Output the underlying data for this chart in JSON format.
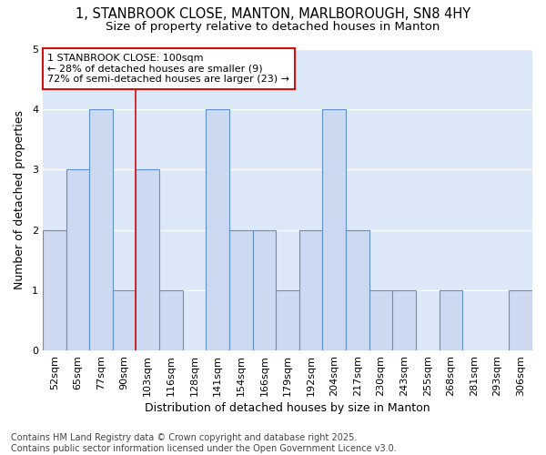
{
  "title_line1": "1, STANBROOK CLOSE, MANTON, MARLBOROUGH, SN8 4HY",
  "title_line2": "Size of property relative to detached houses in Manton",
  "xlabel": "Distribution of detached houses by size in Manton",
  "ylabel": "Number of detached properties",
  "categories": [
    "52sqm",
    "65sqm",
    "77sqm",
    "90sqm",
    "103sqm",
    "116sqm",
    "128sqm",
    "141sqm",
    "154sqm",
    "166sqm",
    "179sqm",
    "192sqm",
    "204sqm",
    "217sqm",
    "230sqm",
    "243sqm",
    "255sqm",
    "268sqm",
    "281sqm",
    "293sqm",
    "306sqm"
  ],
  "values": [
    2,
    3,
    4,
    1,
    3,
    1,
    0,
    4,
    2,
    2,
    1,
    2,
    4,
    2,
    1,
    1,
    0,
    1,
    0,
    0,
    1
  ],
  "bar_color": "#ccd9f0",
  "bar_edge_color": "#6090cc",
  "background_color": "#dce8f8",
  "grid_color": "#ffffff",
  "reference_line_idx": 4,
  "reference_line_color": "#cc1111",
  "annotation_text": "1 STANBROOK CLOSE: 100sqm\n← 28% of detached houses are smaller (9)\n72% of semi-detached houses are larger (23) →",
  "annotation_box_color": "#cc1111",
  "annotation_bg": "#ffffff",
  "ylim": [
    0,
    5
  ],
  "yticks": [
    0,
    1,
    2,
    3,
    4,
    5
  ],
  "footer_line1": "Contains HM Land Registry data © Crown copyright and database right 2025.",
  "footer_line2": "Contains public sector information licensed under the Open Government Licence v3.0.",
  "fig_bg": "#ffffff",
  "title_fontsize": 10.5,
  "subtitle_fontsize": 9.5,
  "axis_label_fontsize": 9,
  "tick_fontsize": 8,
  "footer_fontsize": 7,
  "annot_fontsize": 8
}
